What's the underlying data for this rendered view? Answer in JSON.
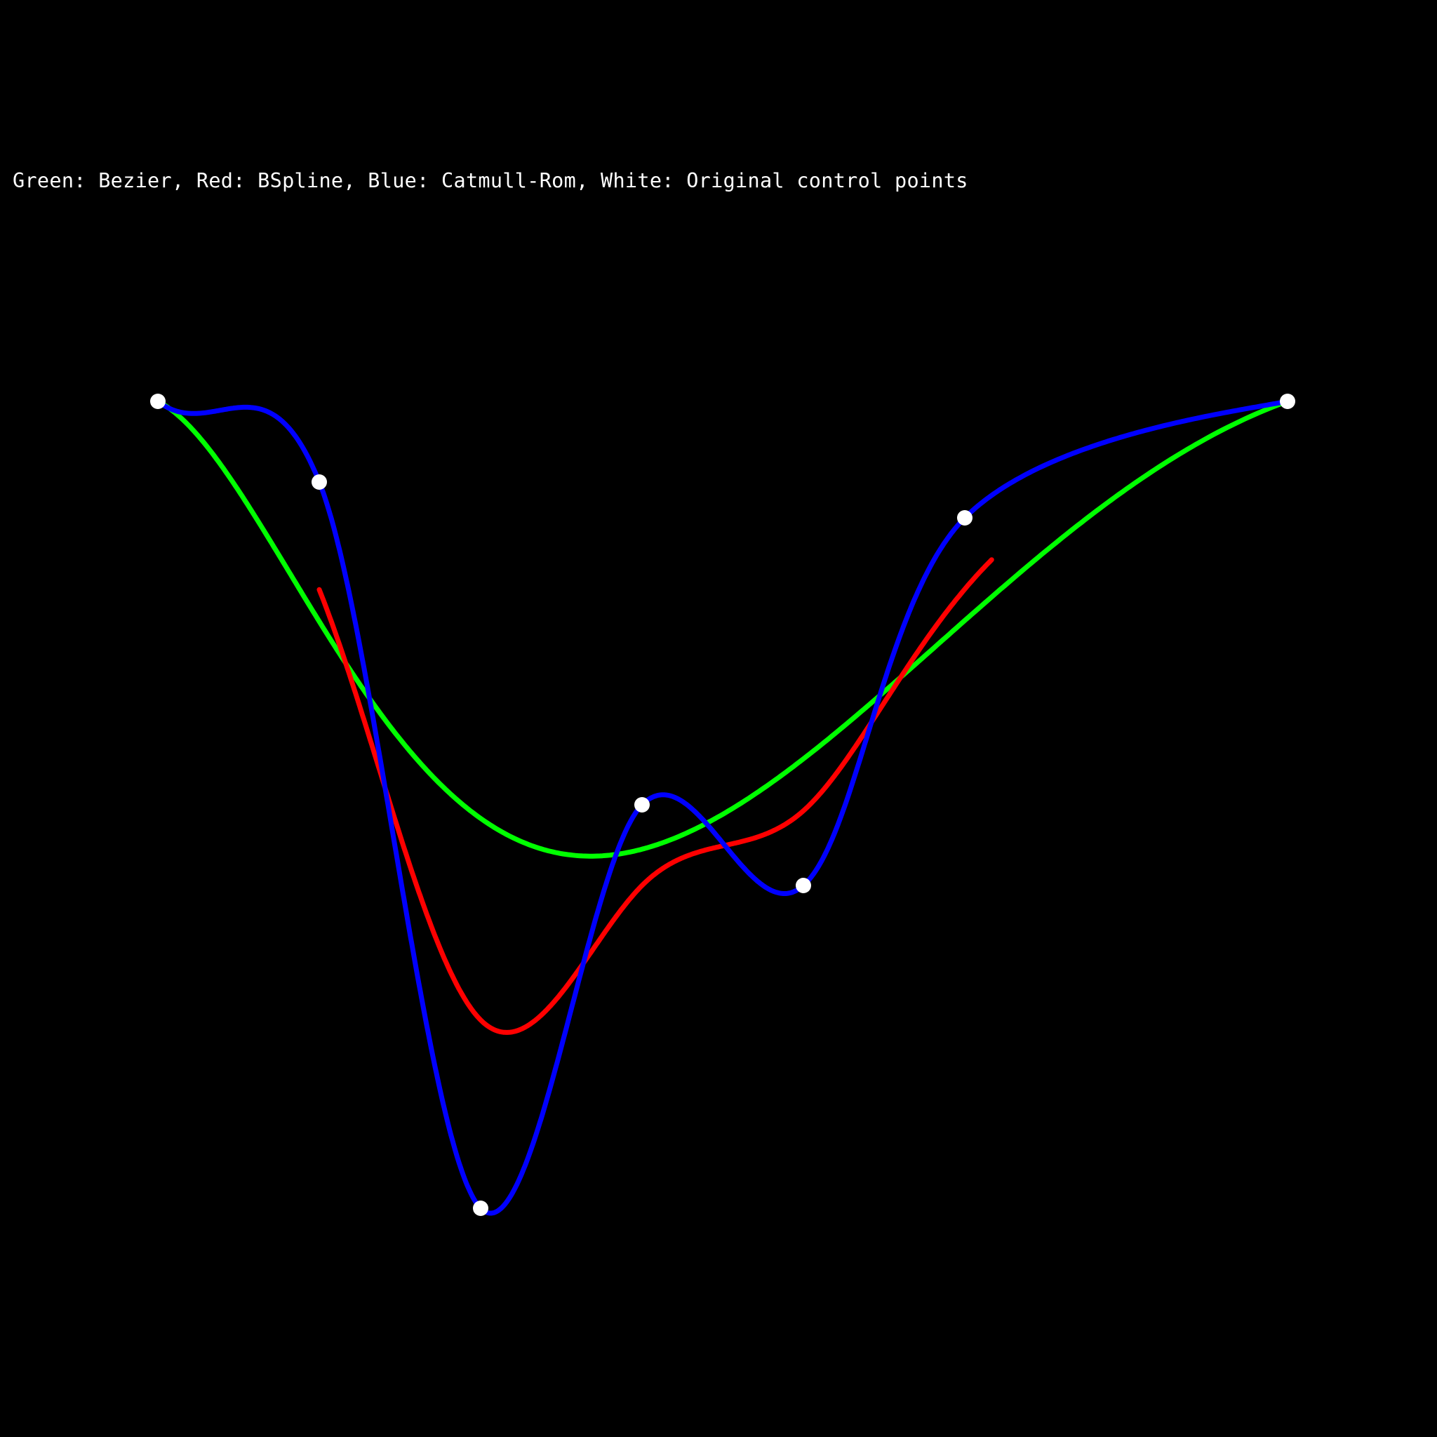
{
  "legend": "Green: Bezier, Red: BSpline, Blue: Catmull-Rom, White: Original control points",
  "colors": {
    "background": "#000000",
    "bezier": "#00ff00",
    "bspline": "#ff0000",
    "catmull_rom": "#0000ff",
    "control_points": "#ffffff",
    "text": "#ffffff"
  },
  "curves": [
    {
      "key": "bezier",
      "type": "bezier"
    },
    {
      "key": "bspline",
      "type": "bspline"
    },
    {
      "key": "catmull_rom",
      "type": "catmull-rom"
    }
  ]
}
